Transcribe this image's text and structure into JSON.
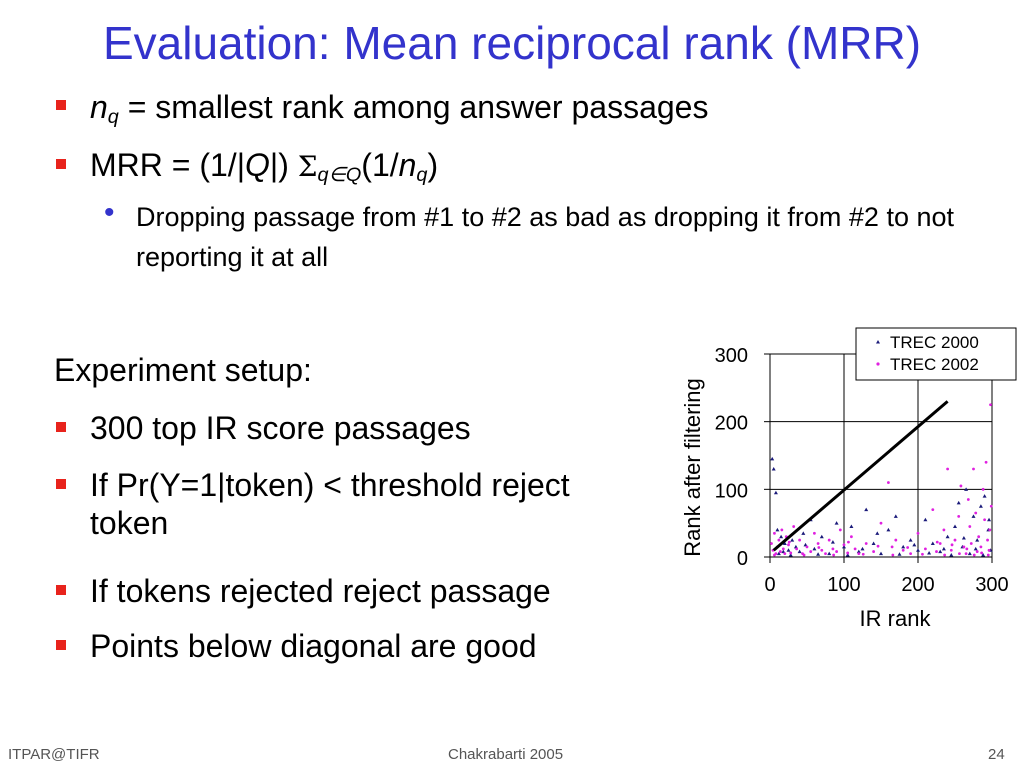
{
  "slide": {
    "title": "Evaluation: Mean reciprocal rank (MRR)",
    "bullets_top": [
      {
        "var": "n",
        "subscript": "q",
        "rest": "= smallest rank among answer passages"
      },
      {
        "prefix": "MRR = (1/|",
        "q_var": "Q",
        "mid": "|)",
        "sigma": "Σ",
        "sigma_sub": "q∈Q",
        "paren": "(1/",
        "n_var": "n",
        "n_sub": "q",
        "close": ")"
      }
    ],
    "sub_bullet": "Dropping passage from #1 to #2 as bad as dropping it from #2 to not reporting it at all",
    "experiment_heading": "Experiment setup:",
    "experiment_bullets": [
      "300 top IR score passages",
      "If Pr(Y=1|token) < threshold reject token",
      "If tokens rejected reject passage",
      "Points below diagonal are good"
    ],
    "footer": {
      "left": "ITPAR@TIFR",
      "center": "Chakrabarti 2005",
      "right": "24"
    }
  },
  "chart_data": {
    "type": "scatter",
    "xlabel": "IR rank",
    "ylabel": "Rank after filtering",
    "xlim": [
      0,
      300
    ],
    "ylim": [
      0,
      300
    ],
    "x_ticks": [
      "0",
      "100",
      "200",
      "300"
    ],
    "y_ticks": [
      "0",
      "100",
      "200",
      "300"
    ],
    "grid": true,
    "legend_position": "top-right",
    "colors": {
      "trec2000": "#1a1a7a",
      "trec2002": "#e020e0",
      "diagonal": "#000000"
    },
    "series": [
      {
        "name": "TREC 2000",
        "marker": "triangle",
        "points": [
          [
            3,
            145
          ],
          [
            5,
            130
          ],
          [
            8,
            95
          ],
          [
            10,
            40
          ],
          [
            15,
            30
          ],
          [
            20,
            20
          ],
          [
            25,
            10
          ],
          [
            30,
            25
          ],
          [
            35,
            15
          ],
          [
            40,
            8
          ],
          [
            45,
            35
          ],
          [
            55,
            55
          ],
          [
            60,
            12
          ],
          [
            70,
            30
          ],
          [
            80,
            5
          ],
          [
            90,
            50
          ],
          [
            100,
            15
          ],
          [
            110,
            45
          ],
          [
            120,
            8
          ],
          [
            130,
            70
          ],
          [
            140,
            20
          ],
          [
            150,
            5
          ],
          [
            160,
            40
          ],
          [
            170,
            60
          ],
          [
            180,
            15
          ],
          [
            190,
            25
          ],
          [
            200,
            10
          ],
          [
            210,
            55
          ],
          [
            220,
            20
          ],
          [
            230,
            8
          ],
          [
            240,
            30
          ],
          [
            250,
            45
          ],
          [
            255,
            80
          ],
          [
            260,
            15
          ],
          [
            265,
            100
          ],
          [
            270,
            5
          ],
          [
            275,
            60
          ],
          [
            280,
            25
          ],
          [
            285,
            75
          ],
          [
            290,
            90
          ],
          [
            295,
            40
          ],
          [
            298,
            10
          ],
          [
            12,
            5
          ],
          [
            18,
            8
          ],
          [
            28,
            3
          ],
          [
            48,
            18
          ],
          [
            65,
            4
          ],
          [
            85,
            22
          ],
          [
            105,
            3
          ],
          [
            125,
            12
          ],
          [
            145,
            35
          ],
          [
            175,
            4
          ],
          [
            195,
            18
          ],
          [
            215,
            6
          ],
          [
            235,
            12
          ],
          [
            245,
            3
          ],
          [
            262,
            28
          ],
          [
            278,
            12
          ],
          [
            288,
            3
          ],
          [
            296,
            55
          ]
        ]
      },
      {
        "name": "TREC 2002",
        "marker": "dot",
        "points": [
          [
            2,
            20
          ],
          [
            4,
            10
          ],
          [
            6,
            35
          ],
          [
            8,
            5
          ],
          [
            10,
            15
          ],
          [
            12,
            25
          ],
          [
            14,
            8
          ],
          [
            16,
            40
          ],
          [
            18,
            12
          ],
          [
            20,
            5
          ],
          [
            22,
            30
          ],
          [
            25,
            18
          ],
          [
            28,
            6
          ],
          [
            32,
            45
          ],
          [
            36,
            12
          ],
          [
            40,
            25
          ],
          [
            44,
            5
          ],
          [
            50,
            15
          ],
          [
            55,
            8
          ],
          [
            60,
            35
          ],
          [
            65,
            20
          ],
          [
            70,
            10
          ],
          [
            75,
            5
          ],
          [
            80,
            25
          ],
          [
            85,
            12
          ],
          [
            90,
            8
          ],
          [
            95,
            40
          ],
          [
            100,
            18
          ],
          [
            105,
            6
          ],
          [
            110,
            30
          ],
          [
            115,
            12
          ],
          [
            120,
            5
          ],
          [
            130,
            20
          ],
          [
            140,
            8
          ],
          [
            150,
            50
          ],
          [
            160,
            110
          ],
          [
            165,
            15
          ],
          [
            170,
            25
          ],
          [
            180,
            10
          ],
          [
            190,
            5
          ],
          [
            200,
            35
          ],
          [
            210,
            12
          ],
          [
            220,
            70
          ],
          [
            225,
            8
          ],
          [
            230,
            20
          ],
          [
            235,
            40
          ],
          [
            240,
            130
          ],
          [
            245,
            10
          ],
          [
            250,
            25
          ],
          [
            255,
            60
          ],
          [
            258,
            105
          ],
          [
            262,
            15
          ],
          [
            265,
            5
          ],
          [
            268,
            85
          ],
          [
            270,
            45
          ],
          [
            272,
            20
          ],
          [
            275,
            130
          ],
          [
            278,
            65
          ],
          [
            280,
            8
          ],
          [
            282,
            30
          ],
          [
            285,
            15
          ],
          [
            288,
            100
          ],
          [
            290,
            55
          ],
          [
            292,
            140
          ],
          [
            294,
            25
          ],
          [
            296,
            10
          ],
          [
            298,
            225
          ],
          [
            299,
            75
          ],
          [
            297,
            40
          ],
          [
            295,
            3
          ],
          [
            286,
            6
          ],
          [
            276,
            3
          ],
          [
            266,
            12
          ],
          [
            256,
            5
          ],
          [
            246,
            18
          ],
          [
            236,
            3
          ],
          [
            226,
            22
          ],
          [
            206,
            4
          ],
          [
            186,
            14
          ],
          [
            166,
            3
          ],
          [
            146,
            16
          ],
          [
            126,
            4
          ],
          [
            106,
            22
          ],
          [
            86,
            3
          ],
          [
            66,
            14
          ],
          [
            46,
            3
          ],
          [
            26,
            22
          ],
          [
            6,
            3
          ]
        ]
      }
    ],
    "diagonal_line": {
      "from": [
        5,
        10
      ],
      "to": [
        240,
        230
      ]
    }
  }
}
